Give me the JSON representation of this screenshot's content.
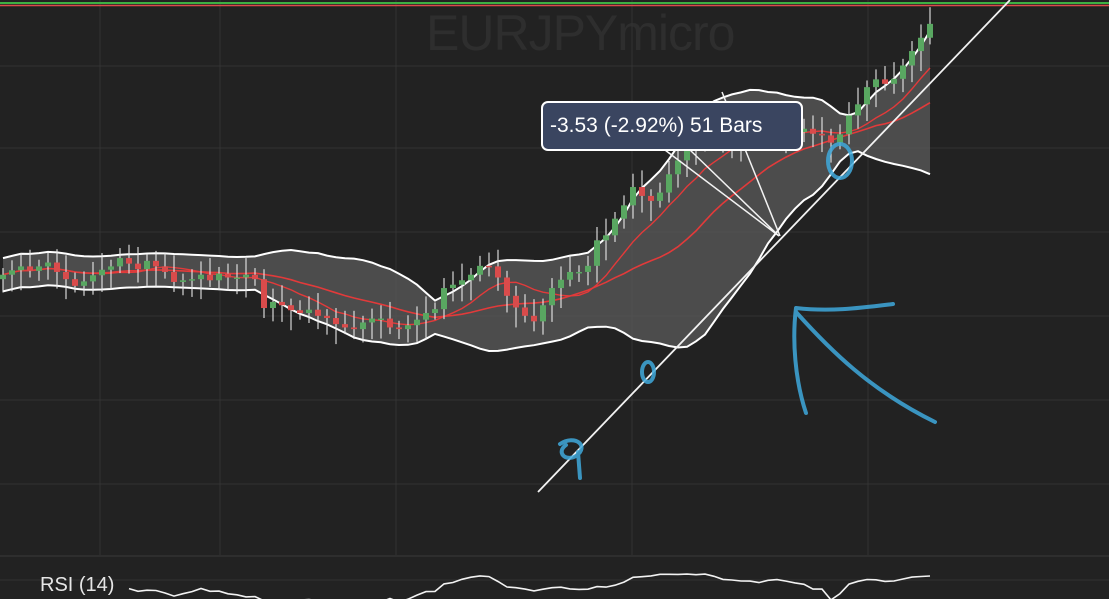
{
  "symbol": "EURJPYmicro",
  "measurement": "-3.53 (-2.92%) 51 Bars",
  "indicator_label": "RSI (14)",
  "colors": {
    "background": "#222222",
    "grid": "#333333",
    "bull_candle": "#59a761",
    "bear_candle": "#d94b4b",
    "moving_average": "#e23a3a",
    "band_fill": "#5b5b5b",
    "band_line": "#ffffff",
    "annotation": "#3fa9dc",
    "price_line": "#3cb043"
  },
  "chart_data": {
    "type": "candlestick",
    "title": "EURJPYmicro",
    "indicators": [
      "Bollinger Bands",
      "Moving Average",
      "Moving Average",
      "RSI (14)"
    ],
    "grid": true,
    "annotations": [
      "measure tool",
      "trend line",
      "hand-drawn arrow",
      "hand-drawn circles"
    ],
    "closes": [
      0.505,
      0.513,
      0.52,
      0.512,
      0.52,
      0.527,
      0.51,
      0.497,
      0.485,
      0.493,
      0.504,
      0.514,
      0.52,
      0.535,
      0.525,
      0.515,
      0.53,
      0.52,
      0.51,
      0.492,
      0.495,
      0.497,
      0.505,
      0.495,
      0.507,
      0.5,
      0.5,
      0.505,
      0.497,
      0.445,
      0.456,
      0.45,
      0.441,
      0.436,
      0.442,
      0.431,
      0.427,
      0.416,
      0.41,
      0.407,
      0.419,
      0.426,
      0.426,
      0.41,
      0.407,
      0.414,
      0.424,
      0.436,
      0.443,
      0.481,
      0.487,
      0.495,
      0.505,
      0.521,
      0.52,
      0.5,
      0.467,
      0.446,
      0.431,
      0.421,
      0.45,
      0.481,
      0.496,
      0.51,
      0.51,
      0.521,
      0.567,
      0.576,
      0.606,
      0.63,
      0.663,
      0.647,
      0.638,
      0.653,
      0.686,
      0.711,
      0.742,
      0.739,
      0.786,
      0.768,
      0.749,
      0.745,
      0.747,
      0.767,
      0.767,
      0.77,
      0.766,
      0.76,
      0.762,
      0.768,
      0.759,
      0.756,
      0.743,
      0.758,
      0.792,
      0.812,
      0.843,
      0.857,
      0.849,
      0.858,
      0.882,
      0.908,
      0.932,
      0.957
    ]
  }
}
